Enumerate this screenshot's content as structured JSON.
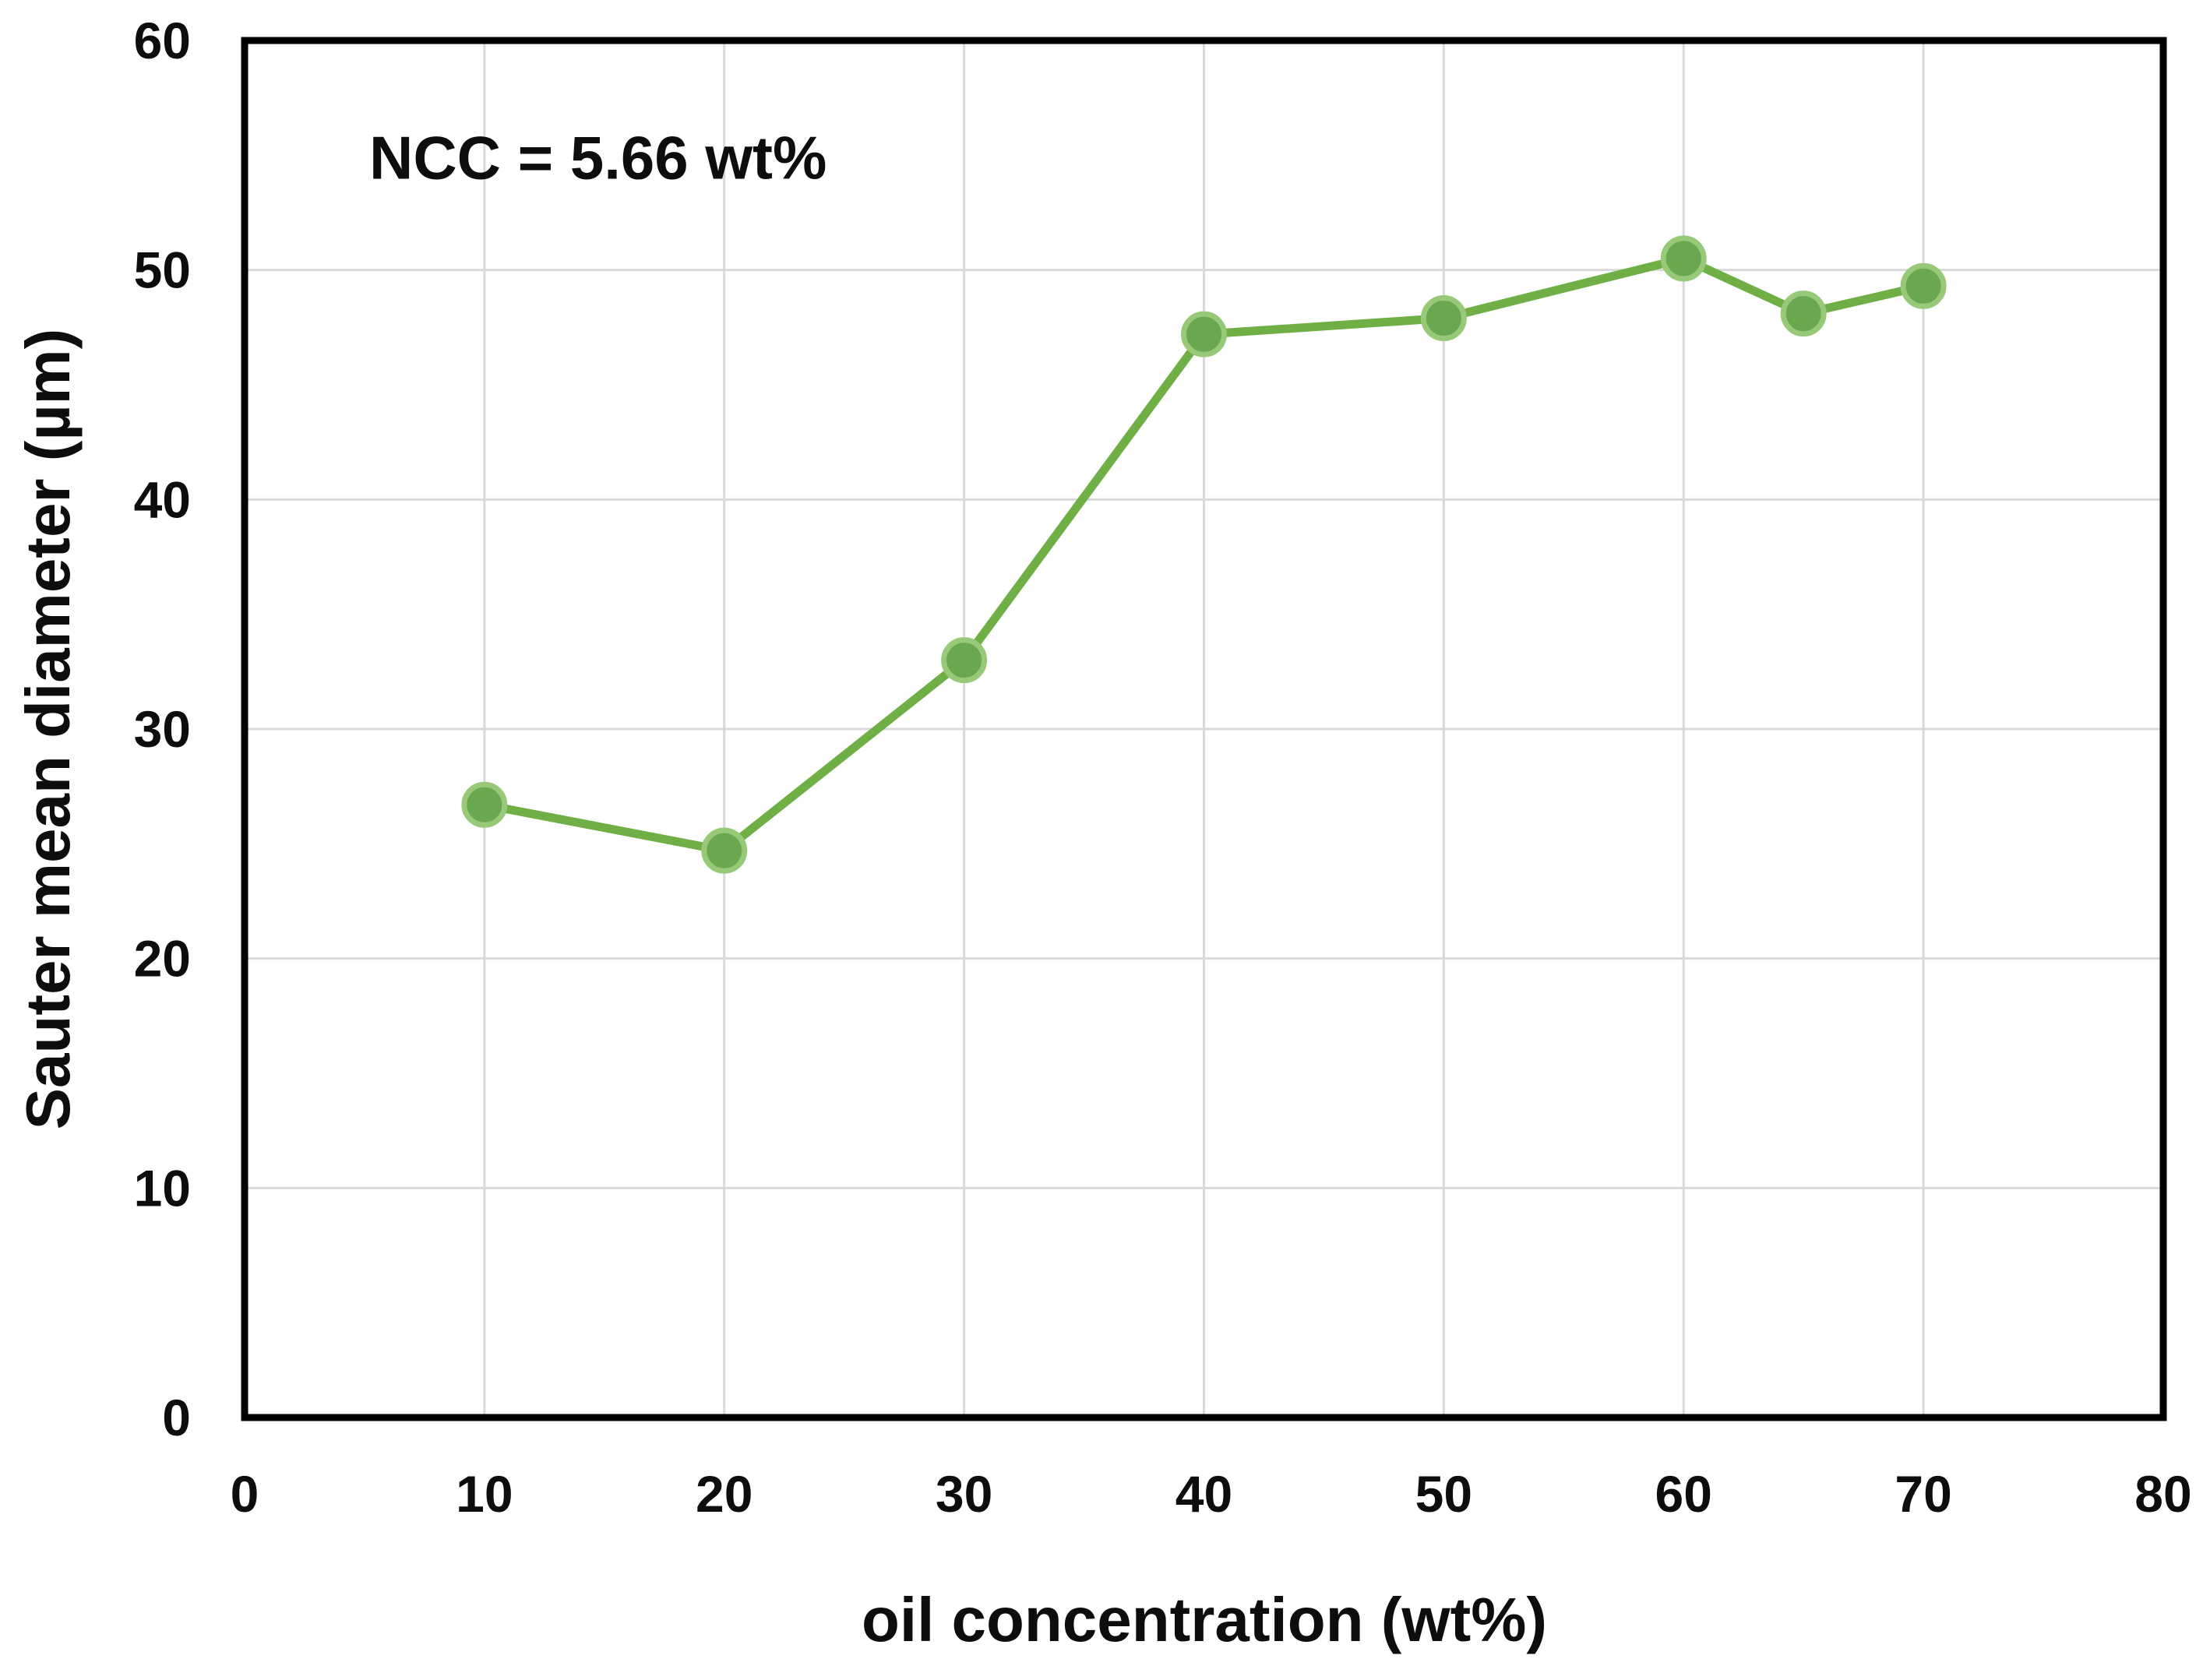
{
  "chart_data": {
    "type": "line",
    "title": "",
    "annotation": "NCC = 5.66 wt%",
    "xlabel": "oil concentration (wt%)",
    "ylabel": "Sauter mean diameter (µm)",
    "series": [
      {
        "name": "Sauter mean diameter",
        "x": [
          10,
          20,
          30,
          40,
          50,
          60,
          65,
          70
        ],
        "y": [
          26.7,
          24.7,
          33.0,
          47.2,
          47.9,
          50.5,
          48.1,
          49.3
        ]
      }
    ],
    "xlim": [
      0,
      80
    ],
    "ylim": [
      0,
      60
    ],
    "x_ticks": [
      "0",
      "10",
      "20",
      "30",
      "40",
      "50",
      "60",
      "70",
      "80"
    ],
    "y_ticks": [
      "0",
      "10",
      "20",
      "30",
      "40",
      "50",
      "60"
    ],
    "grid": true,
    "legend": "none",
    "colors": {
      "line": "#6faf46",
      "marker_fill": "#6aa850",
      "marker_edge": "#97c979",
      "gridline": "#d9d9d9",
      "frame": "#000000",
      "text": "#0d0d0d"
    }
  }
}
